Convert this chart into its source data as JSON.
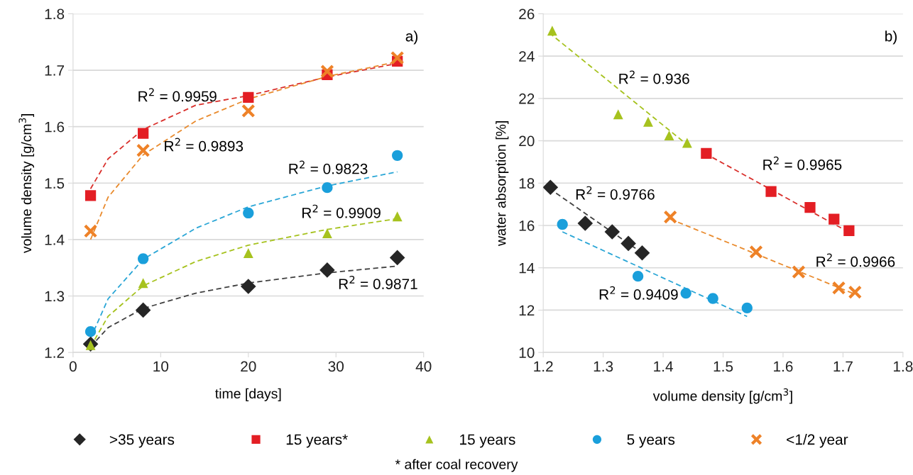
{
  "chart_data": [
    {
      "type": "scatter",
      "xlabel": "time [days]",
      "ylabel": "volume density [g/cm$^{3}$]",
      "xlim": [
        0,
        40
      ],
      "xticks": [
        0,
        10,
        20,
        30,
        40
      ],
      "ylim": [
        1.2,
        1.8
      ],
      "yticks": [
        {
          "value": 1.2,
          "label": "1.2"
        },
        {
          "value": 1.3,
          "label": "1.3"
        },
        {
          "value": 1.4,
          "label": "1.4"
        },
        {
          "value": 1.5,
          "label": "1.5"
        },
        {
          "value": 1.6,
          "label": "1.6"
        },
        {
          "value": 1.7,
          "label": "1.7"
        },
        {
          "value": 1.8,
          "label": "1.8"
        }
      ],
      "grid": "y",
      "legend": "bottom",
      "annotations": [
        "a)",
        "R$^{2}$ = 0.9959",
        "R$^{2}$ = 0.9893",
        "R$^{2}$ = 0.9823",
        "R$^{2}$ = 0.9909",
        "R$^{2}$ = 0.9871"
      ],
      "series": [
        {
          "type": "line",
          "color": "#404040",
          "line_style": "dashed",
          "marker": "none",
          "x": [
            2,
            4,
            8,
            14,
            20,
            29,
            37
          ],
          "values": [
            1.21,
            1.244,
            1.278,
            1.305,
            1.323,
            1.341,
            1.353
          ]
        },
        {
          "type": "line",
          "color": "#d9302c",
          "line_style": "dashed",
          "marker": "none",
          "x": [
            2,
            4,
            8,
            14,
            20,
            29,
            37
          ],
          "values": [
            1.49,
            1.543,
            1.595,
            1.638,
            1.655,
            1.688,
            1.712
          ]
        },
        {
          "type": "line",
          "color": "#a6c21e",
          "line_style": "dashed",
          "marker": "none",
          "x": [
            2,
            4,
            8,
            14,
            20,
            29,
            37
          ],
          "values": [
            1.21,
            1.264,
            1.318,
            1.361,
            1.39,
            1.418,
            1.437
          ]
        },
        {
          "type": "line",
          "color": "#2aa6d6",
          "line_style": "dashed",
          "marker": "none",
          "x": [
            2,
            4,
            8,
            14,
            20,
            29,
            37
          ],
          "values": [
            1.225,
            1.295,
            1.365,
            1.42,
            1.458,
            1.495,
            1.52
          ]
        },
        {
          "type": "line",
          "color": "#e98b2e",
          "line_style": "dashed",
          "marker": "none",
          "x": [
            2,
            4,
            8,
            14,
            20,
            29,
            37
          ],
          "values": [
            1.4,
            1.475,
            1.55,
            1.61,
            1.649,
            1.689,
            1.715
          ]
        },
        {
          "name": ">35 years",
          "color": "#262626",
          "marker": "diamond",
          "x": [
            2,
            8,
            20,
            29,
            37
          ],
          "values": [
            1.215,
            1.275,
            1.317,
            1.346,
            1.368
          ]
        },
        {
          "name": "15 years*",
          "color": "#e31e24",
          "marker": "square",
          "x": [
            2,
            8,
            20,
            29,
            37
          ],
          "values": [
            1.478,
            1.588,
            1.652,
            1.692,
            1.716
          ]
        },
        {
          "name": "15 years",
          "color": "#a6c21e",
          "marker": "triangle",
          "x": [
            2,
            8,
            20,
            29,
            37
          ],
          "values": [
            1.213,
            1.323,
            1.376,
            1.411,
            1.441
          ]
        },
        {
          "name": "5 years",
          "color": "#1a9fdb",
          "marker": "circle",
          "x": [
            2,
            8,
            20,
            29,
            37
          ],
          "values": [
            1.237,
            1.366,
            1.447,
            1.492,
            1.549
          ]
        },
        {
          "name": "<1/2 year",
          "color": "#ee8228",
          "marker": "cross",
          "x": [
            2,
            8,
            20,
            29,
            37
          ],
          "values": [
            1.415,
            1.558,
            1.628,
            1.698,
            1.722
          ]
        }
      ]
    },
    {
      "type": "scatter",
      "xlabel": "volume density [g/cm$^{3}$]",
      "ylabel": "water absorption [%]",
      "xlim": [
        1.2,
        1.8
      ],
      "xticks": [
        {
          "value": 1.2,
          "label": "1.2"
        },
        {
          "value": 1.3,
          "label": "1.3"
        },
        {
          "value": 1.4,
          "label": "1.4"
        },
        {
          "value": 1.5,
          "label": "1.5"
        },
        {
          "value": 1.6,
          "label": "1.6"
        },
        {
          "value": 1.7,
          "label": "1.7"
        },
        {
          "value": 1.8,
          "label": "1.8"
        }
      ],
      "ylim": [
        10,
        26
      ],
      "yticks": [
        10,
        12,
        14,
        16,
        18,
        20,
        22,
        24,
        26
      ],
      "grid": "y",
      "legend": "bottom",
      "annotations": [
        "b)",
        "* after coal recovery",
        "R$^{2}$ = 0.936",
        "R$^{2}$ = 0.9965",
        "R$^{2}$ = 0.9766",
        "R$^{2}$ = 0.9966",
        "R$^{2}$ = 0.9409"
      ],
      "series": [
        {
          "type": "line",
          "color": "#404040",
          "line_style": "dashed",
          "marker": "none",
          "x": [
            1.21,
            1.37
          ],
          "values": [
            17.75,
            14.6
          ]
        },
        {
          "type": "line",
          "color": "#d9302c",
          "line_style": "dashed",
          "marker": "none",
          "x": [
            1.47,
            1.715
          ],
          "values": [
            19.4,
            15.6
          ]
        },
        {
          "type": "line",
          "color": "#a6c21e",
          "line_style": "dashed",
          "marker": "none",
          "x": [
            1.21,
            1.445
          ],
          "values": [
            25.1,
            19.7
          ]
        },
        {
          "type": "line",
          "color": "#2aa6d6",
          "line_style": "dashed",
          "marker": "none",
          "x": [
            1.232,
            1.54
          ],
          "values": [
            15.7,
            11.7
          ]
        },
        {
          "type": "line",
          "color": "#e98b2e",
          "line_style": "dashed",
          "marker": "none",
          "x": [
            1.412,
            1.72
          ],
          "values": [
            16.3,
            12.75
          ]
        },
        {
          "name": ">35 years",
          "color": "#262626",
          "marker": "diamond",
          "x": [
            1.212,
            1.27,
            1.315,
            1.342,
            1.365
          ],
          "values": [
            17.8,
            16.1,
            15.7,
            15.15,
            14.7
          ]
        },
        {
          "name": "15 years*",
          "color": "#e31e24",
          "marker": "square",
          "x": [
            1.472,
            1.58,
            1.645,
            1.685,
            1.71
          ],
          "values": [
            19.4,
            17.6,
            16.85,
            16.3,
            15.75
          ]
        },
        {
          "name": "15 years",
          "color": "#a6c21e",
          "marker": "triangle",
          "x": [
            1.215,
            1.325,
            1.375,
            1.41,
            1.44
          ],
          "values": [
            25.2,
            21.25,
            20.9,
            20.25,
            19.9
          ]
        },
        {
          "name": "5 years",
          "color": "#1a9fdb",
          "marker": "circle",
          "x": [
            1.232,
            1.358,
            1.438,
            1.483,
            1.54
          ],
          "values": [
            16.05,
            13.6,
            12.8,
            12.55,
            12.1
          ]
        },
        {
          "name": "<1/2 year",
          "color": "#ee8228",
          "marker": "cross",
          "x": [
            1.412,
            1.555,
            1.626,
            1.693,
            1.72
          ],
          "values": [
            16.4,
            14.75,
            13.8,
            13.05,
            12.85
          ]
        }
      ]
    }
  ]
}
